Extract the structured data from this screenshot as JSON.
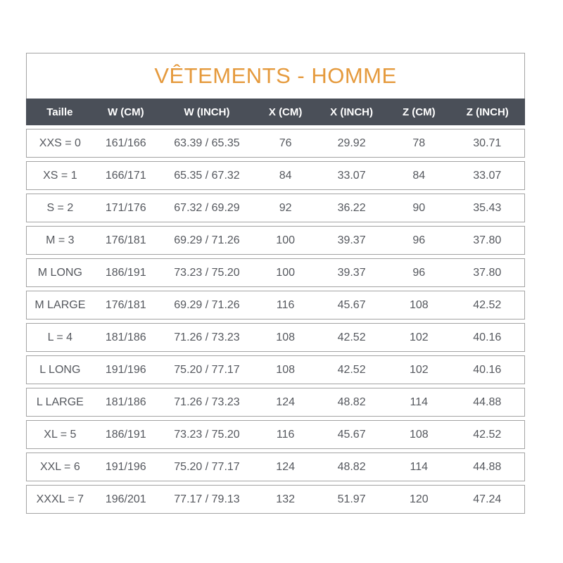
{
  "chart_data": {
    "type": "table",
    "title": "VÊTEMENTS - HOMME",
    "columns": [
      "Taille",
      "W (CM)",
      "W (INCH)",
      "X (CM)",
      "X (INCH)",
      "Z (CM)",
      "Z (INCH)"
    ],
    "rows": [
      [
        "XXS = 0",
        "161/166",
        "63.39 / 65.35",
        "76",
        "29.92",
        "78",
        "30.71"
      ],
      [
        "XS = 1",
        "166/171",
        "65.35 / 67.32",
        "84",
        "33.07",
        "84",
        "33.07"
      ],
      [
        "S = 2",
        "171/176",
        "67.32 / 69.29",
        "92",
        "36.22",
        "90",
        "35.43"
      ],
      [
        "M = 3",
        "176/181",
        "69.29 / 71.26",
        "100",
        "39.37",
        "96",
        "37.80"
      ],
      [
        "M LONG",
        "186/191",
        "73.23 / 75.20",
        "100",
        "39.37",
        "96",
        "37.80"
      ],
      [
        "M LARGE",
        "176/181",
        "69.29 / 71.26",
        "116",
        "45.67",
        "108",
        "42.52"
      ],
      [
        "L = 4",
        "181/186",
        "71.26 / 73.23",
        "108",
        "42.52",
        "102",
        "40.16"
      ],
      [
        "L LONG",
        "191/196",
        "75.20 / 77.17",
        "108",
        "42.52",
        "102",
        "40.16"
      ],
      [
        "L LARGE",
        "181/186",
        "71.26 / 73.23",
        "124",
        "48.82",
        "114",
        "44.88"
      ],
      [
        "XL = 5",
        "186/191",
        "73.23 / 75.20",
        "116",
        "45.67",
        "108",
        "42.52"
      ],
      [
        "XXL = 6",
        "191/196",
        "75.20 / 77.17",
        "124",
        "48.82",
        "114",
        "44.88"
      ],
      [
        "XXXL = 7",
        "196/201",
        "77.17 / 79.13",
        "132",
        "51.97",
        "120",
        "47.24"
      ]
    ]
  },
  "colors": {
    "title": "#e59a3d",
    "header_bg": "#4a4f58",
    "header_text": "#ffffff",
    "row_border": "#a3a3a3",
    "cell_text": "#55585e",
    "background": "#ffffff"
  }
}
